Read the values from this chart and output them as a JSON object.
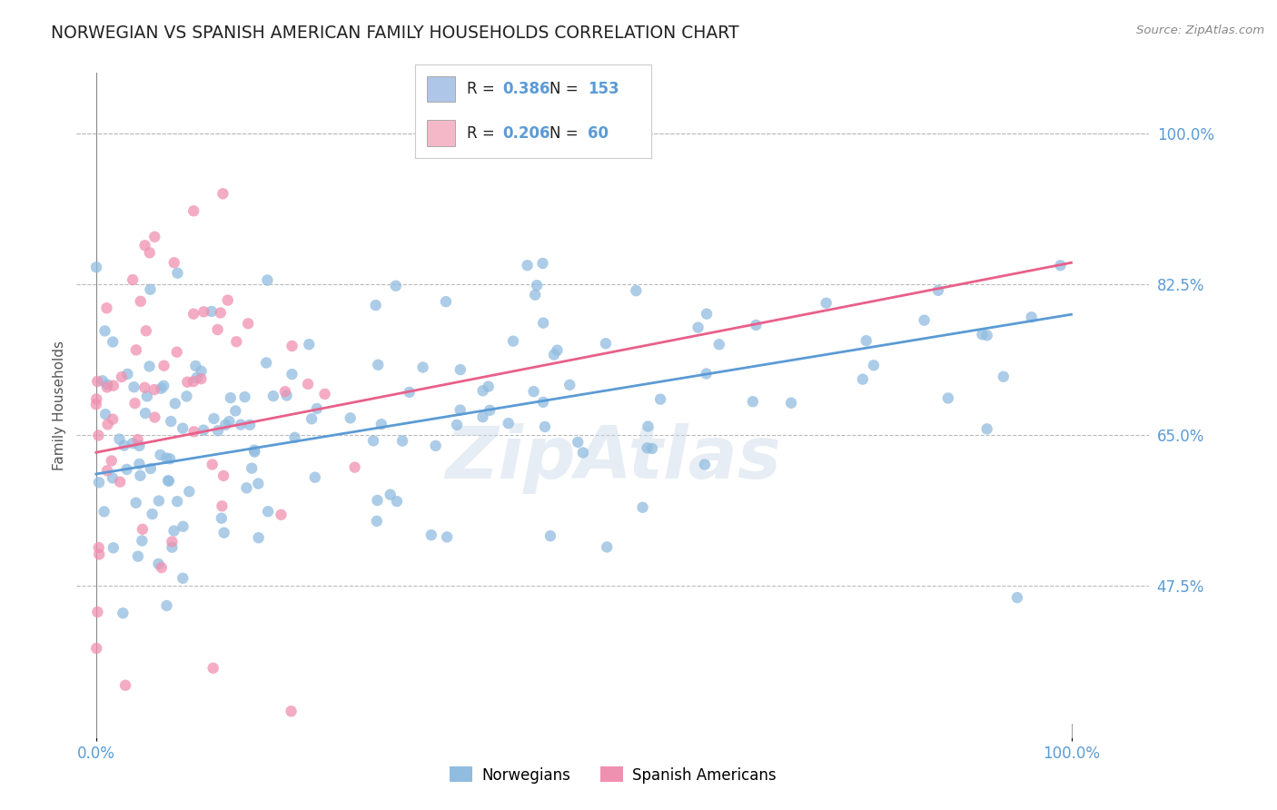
{
  "title": "NORWEGIAN VS SPANISH AMERICAN FAMILY HOUSEHOLDS CORRELATION CHART",
  "source": "Source: ZipAtlas.com",
  "ylabel_label": "Family Households",
  "legend_names": [
    "Norwegians",
    "Spanish Americans"
  ],
  "legend_entries": [
    {
      "color": "#aec6e8",
      "R": "0.386",
      "N": "153"
    },
    {
      "color": "#f4b8c8",
      "R": "0.206",
      "N": "60"
    }
  ],
  "blue_line_color": "#5b9bd5",
  "pink_line_color": "#e8608a",
  "dot_blue": "#90bce0",
  "dot_pink": "#f090b0",
  "watermark": "ZipAtlas",
  "background_color": "#ffffff",
  "grid_color": "#bbbbbb",
  "title_color": "#222222",
  "axis_label_color": "#5b9bd5",
  "ytick_vals": [
    47.5,
    65.0,
    82.5,
    100.0
  ],
  "ylim_min": 30.0,
  "ylim_max": 107.0,
  "xlim_min": -2.0,
  "xlim_max": 108.0,
  "blue_seed": 7,
  "pink_seed": 13
}
